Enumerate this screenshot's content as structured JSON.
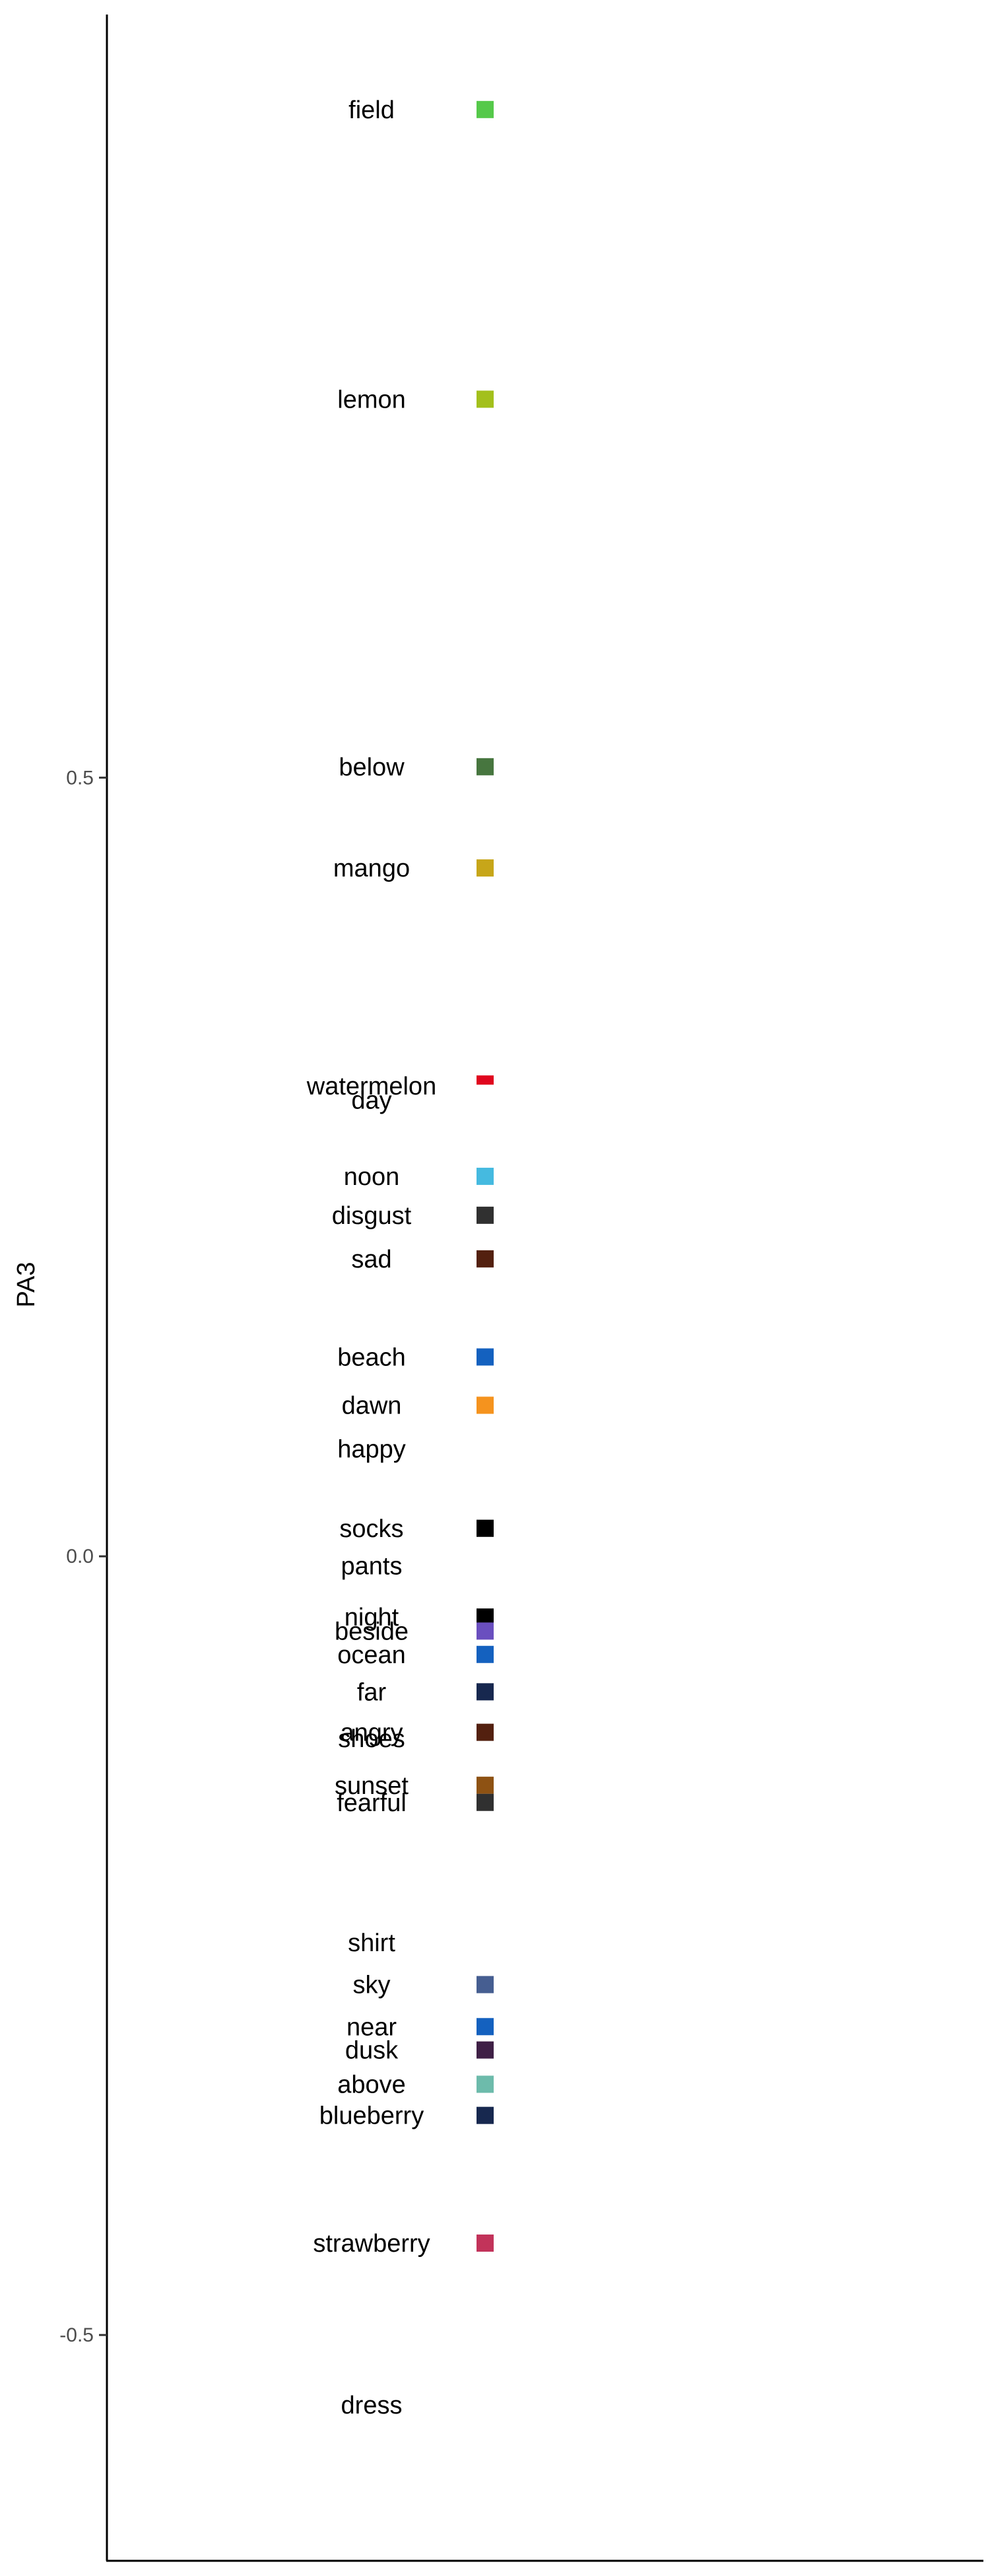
{
  "chart_data": {
    "type": "scatter",
    "title": "",
    "xlabel": "",
    "ylabel": "PA3",
    "ylim": [
      -0.645,
      0.99
    ],
    "y_ticks": [
      0.5,
      0.0,
      -0.5
    ],
    "y_tick_labels": [
      "0.5",
      "0.0",
      "-0.5"
    ],
    "grid": false,
    "legend": "none",
    "points": [
      {
        "label": "field",
        "y": 0.929,
        "color": "#55C94A"
      },
      {
        "label": "lemon",
        "y": 0.743,
        "color": "#A3C01C"
      },
      {
        "label": "below",
        "y": 0.507,
        "color": "#47763F"
      },
      {
        "label": "mango",
        "y": 0.442,
        "color": "#C7A619"
      },
      {
        "label": "watermelon",
        "y": 0.302,
        "color": "#E0061E"
      },
      {
        "label": "day",
        "y": 0.293,
        "color": null
      },
      {
        "label": "noon",
        "y": 0.244,
        "color": "#45BAE0"
      },
      {
        "label": "disgust",
        "y": 0.219,
        "color": "#303030"
      },
      {
        "label": "sad",
        "y": 0.191,
        "color": "#53200F"
      },
      {
        "label": "beach",
        "y": 0.128,
        "color": "#1461BF"
      },
      {
        "label": "dawn",
        "y": 0.097,
        "color": "#F5931E"
      },
      {
        "label": "happy",
        "y": 0.069,
        "color": null
      },
      {
        "label": "socks",
        "y": 0.018,
        "color": "#000000"
      },
      {
        "label": "pants",
        "y": -0.006,
        "color": null
      },
      {
        "label": "night",
        "y": -0.039,
        "color": "#000000"
      },
      {
        "label": "beside",
        "y": -0.048,
        "color": "#6A4FBF"
      },
      {
        "label": "ocean",
        "y": -0.063,
        "color": "#1461BF"
      },
      {
        "label": "far",
        "y": -0.087,
        "color": "#17284F"
      },
      {
        "label": "angry",
        "y": -0.113,
        "color": "#53200F"
      },
      {
        "label": "shoes",
        "y": -0.117,
        "color": null
      },
      {
        "label": "sunset",
        "y": -0.147,
        "color": "#8E5213"
      },
      {
        "label": "fearful",
        "y": -0.158,
        "color": "#303030"
      },
      {
        "label": "shirt",
        "y": -0.248,
        "color": null
      },
      {
        "label": "sky",
        "y": -0.275,
        "color": "#465E91"
      },
      {
        "label": "near",
        "y": -0.302,
        "color": "#1461BF"
      },
      {
        "label": "dusk",
        "y": -0.317,
        "color": "#3F2046"
      },
      {
        "label": "above",
        "y": -0.339,
        "color": "#6DBBAB"
      },
      {
        "label": "blueberry",
        "y": -0.359,
        "color": "#17284F"
      },
      {
        "label": "strawberry",
        "y": -0.441,
        "color": "#C2335A"
      },
      {
        "label": "dress",
        "y": -0.545,
        "color": null
      }
    ]
  }
}
